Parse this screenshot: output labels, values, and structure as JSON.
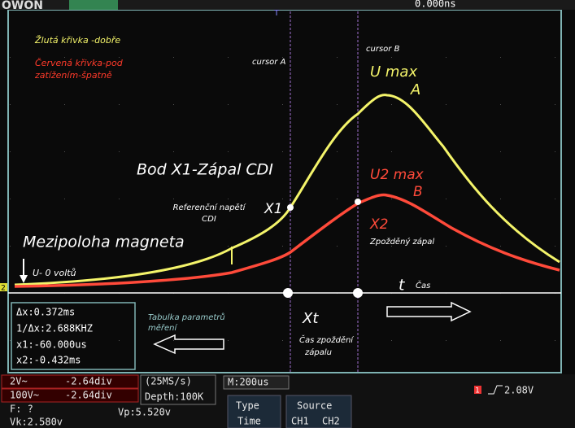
{
  "header": {
    "logo": "OWON",
    "time_offset": "0.000ns",
    "trigger_marker": "T"
  },
  "annotations": {
    "yellow_legend": "Žlutá křivka -dobře",
    "red_legend": [
      "Červená křivka-pod",
      "zatížením-špatně"
    ],
    "cursor_a": "cursor A",
    "cursor_b": "cursor B",
    "u_max": "U max",
    "point_a": "A",
    "bod_x1": "Bod X1-Zápal CDI",
    "x1": "X1",
    "reference": [
      "Referenční napětí",
      "CDI"
    ],
    "u2_max": "U2 max",
    "point_b": "B",
    "x2": "X2",
    "delayed": "Zpožděný zápal",
    "magnet": "Mezipoloha magneta",
    "zero": "U- 0 voltů",
    "t": "t",
    "time": "Čas",
    "xt": "Xt",
    "delay_time": [
      "Čas zpoždění",
      "zápalu"
    ],
    "table_note": [
      "Tabulka parametrů",
      "měření"
    ]
  },
  "measurements": [
    "Δx:0.372ms",
    "1/Δx:2.688KHZ",
    "x1:-60.000us",
    "x2:-0.432ms"
  ],
  "status": {
    "ch1_scale": "2V~",
    "ch1_offset": "-2.64div",
    "ch2_scale": "100V~",
    "ch2_offset": "-2.64div",
    "freq": "F: ?",
    "vk": "Vk:2.580v",
    "vp": "Vp:5.520v",
    "sample_rate": "(25MS/s)",
    "depth": "Depth:100K",
    "timebase": "M:200us",
    "type": "Type",
    "type_value": "Time",
    "source": "Source",
    "source_ch1": "CH1",
    "source_ch2": "CH2",
    "trigger_level": "2.08V",
    "ch1_marker": "1",
    "ch2_marker": "2"
  }
}
